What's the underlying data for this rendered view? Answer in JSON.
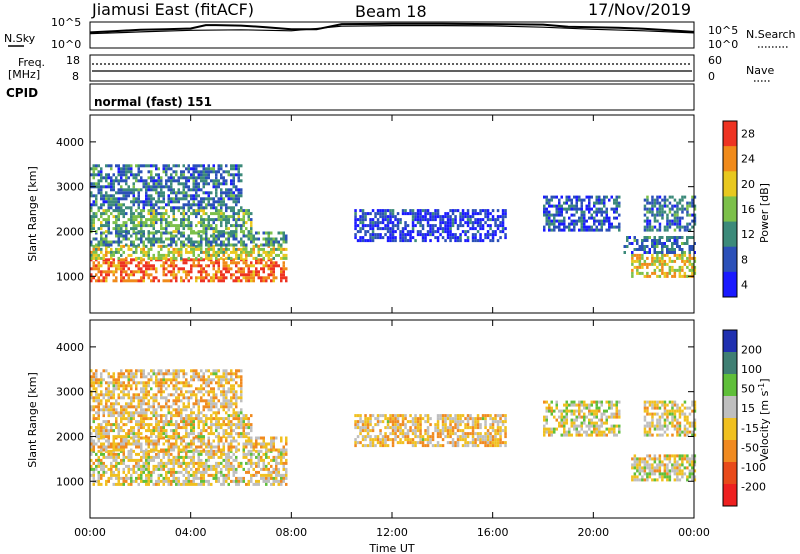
{
  "header": {
    "station": "Jiamusi East (fitACF)",
    "beam": "Beam 18",
    "date": "17/Nov/2019"
  },
  "noise_panel": {
    "left_label": "N.Sky",
    "right_label": "N.Search",
    "left_ticks": [
      "10^5",
      "10^0"
    ],
    "right_ticks": [
      "10^5",
      "10^0"
    ]
  },
  "freq_panel": {
    "left_label_line1": "Freq.",
    "left_label_line2": "[MHz]",
    "right_label": "Nave",
    "left_ticks": [
      "18",
      "8"
    ],
    "right_ticks": [
      "60",
      "0"
    ]
  },
  "cpid": {
    "label": "CPID",
    "mode": "normal (fast) 151"
  },
  "time_axis": {
    "label": "Time UT",
    "ticks": [
      "00:00",
      "04:00",
      "08:00",
      "12:00",
      "16:00",
      "20:00",
      "00:00"
    ]
  },
  "range_axis": {
    "label": "Slant Range [km]",
    "ticks": [
      "1000",
      "2000",
      "3000",
      "4000"
    ]
  },
  "power_colorbar": {
    "label": "Power [dB]",
    "ticks": [
      "4",
      "8",
      "12",
      "16",
      "20",
      "24",
      "28"
    ],
    "colors": [
      "#1a1aff",
      "#2b50b8",
      "#3c8a7a",
      "#7cc04a",
      "#e8c81f",
      "#f08a1a",
      "#ee3322"
    ]
  },
  "velocity_colorbar": {
    "label_main": "Velocity [m s",
    "label_sup": "-1",
    "label_end": "]",
    "ticks": [
      "200",
      "100",
      "50",
      "15",
      "-15",
      "-50",
      "-100",
      "-200"
    ],
    "colors": [
      "#2030b0",
      "#3f7f73",
      "#5fbf3a",
      "#bfbfbf",
      "#f0c020",
      "#f08a20",
      "#e84a1a",
      "#ee2020"
    ]
  },
  "chart_data": [
    {
      "type": "line",
      "title": "Noise",
      "x_range_hours": [
        0,
        24
      ],
      "series": [
        {
          "name": "N.Sky",
          "x": [
            0,
            1,
            2,
            3,
            4,
            4.6,
            5,
            6,
            7,
            8,
            9,
            10,
            12,
            14,
            16,
            18,
            19,
            20,
            21,
            22,
            23,
            24
          ],
          "y": [
            0.6,
            0.65,
            0.7,
            0.72,
            0.75,
            0.88,
            0.88,
            0.86,
            0.8,
            0.72,
            0.72,
            0.92,
            0.93,
            0.93,
            0.92,
            0.9,
            0.82,
            0.8,
            0.78,
            0.74,
            0.68,
            0.62
          ]
        },
        {
          "name": "N.Search",
          "x": [
            0,
            2,
            4,
            6,
            8,
            10,
            12,
            14,
            16,
            18,
            20,
            22,
            24
          ],
          "y": [
            0.55,
            0.62,
            0.68,
            0.7,
            0.66,
            0.84,
            0.86,
            0.86,
            0.85,
            0.8,
            0.72,
            0.66,
            0.58
          ]
        }
      ]
    },
    {
      "type": "line",
      "title": "Frequency / Nave",
      "x_range_hours": [
        0,
        24
      ],
      "series": [
        {
          "name": "Freq",
          "x": [
            0,
            24
          ],
          "y": [
            10.5,
            10.5
          ]
        },
        {
          "name": "Nave",
          "x": [
            0,
            24
          ],
          "y": [
            28,
            28
          ]
        }
      ]
    },
    {
      "type": "heatmap",
      "title": "Power",
      "xlabel": "Time UT",
      "ylabel": "Slant Range [km]",
      "x_range_hours": [
        0,
        24
      ],
      "ylim": [
        180,
        4600
      ],
      "units": "dB",
      "regions": [
        {
          "t": [
            0.0,
            7.8
          ],
          "r": [
            900,
            1400
          ],
          "value": 26
        },
        {
          "t": [
            0.0,
            7.8
          ],
          "r": [
            1400,
            1700
          ],
          "value": 18
        },
        {
          "t": [
            0.0,
            7.8
          ],
          "r": [
            1700,
            2000
          ],
          "value": 12
        },
        {
          "t": [
            0.0,
            6.4
          ],
          "r": [
            2000,
            2500
          ],
          "value": 14
        },
        {
          "t": [
            0.0,
            6.0
          ],
          "r": [
            2500,
            3500
          ],
          "value": 10
        },
        {
          "t": [
            21.5,
            24.0
          ],
          "r": [
            1000,
            1500
          ],
          "value": 20
        },
        {
          "t": [
            21.2,
            24.0
          ],
          "r": [
            1500,
            1900
          ],
          "value": 10
        },
        {
          "t": [
            18.0,
            21.0
          ],
          "r": [
            2000,
            2800
          ],
          "value": 8
        },
        {
          "t": [
            22.0,
            24.0
          ],
          "r": [
            2000,
            2800
          ],
          "value": 10
        },
        {
          "t": [
            10.5,
            16.5
          ],
          "r": [
            1800,
            2500
          ],
          "value": 6
        }
      ]
    },
    {
      "type": "heatmap",
      "title": "Velocity",
      "xlabel": "Time UT",
      "ylabel": "Slant Range [km]",
      "x_range_hours": [
        0,
        24
      ],
      "ylim": [
        180,
        4600
      ],
      "units": "m s-1",
      "regions": [
        {
          "t": [
            0.0,
            7.8
          ],
          "r": [
            900,
            1700
          ],
          "value": 0
        },
        {
          "t": [
            0.0,
            7.8
          ],
          "r": [
            1700,
            2000
          ],
          "value": -20
        },
        {
          "t": [
            0.0,
            6.4
          ],
          "r": [
            2000,
            2500
          ],
          "value": -10
        },
        {
          "t": [
            0.0,
            6.0
          ],
          "r": [
            2500,
            3500
          ],
          "value": -20
        },
        {
          "t": [
            21.5,
            24.0
          ],
          "r": [
            1000,
            1600
          ],
          "value": 0
        },
        {
          "t": [
            18.0,
            21.0
          ],
          "r": [
            2000,
            2800
          ],
          "value": 5
        },
        {
          "t": [
            22.0,
            24.0
          ],
          "r": [
            2000,
            2800
          ],
          "value": 0
        },
        {
          "t": [
            10.5,
            16.5
          ],
          "r": [
            1800,
            2500
          ],
          "value": -20
        }
      ]
    }
  ]
}
